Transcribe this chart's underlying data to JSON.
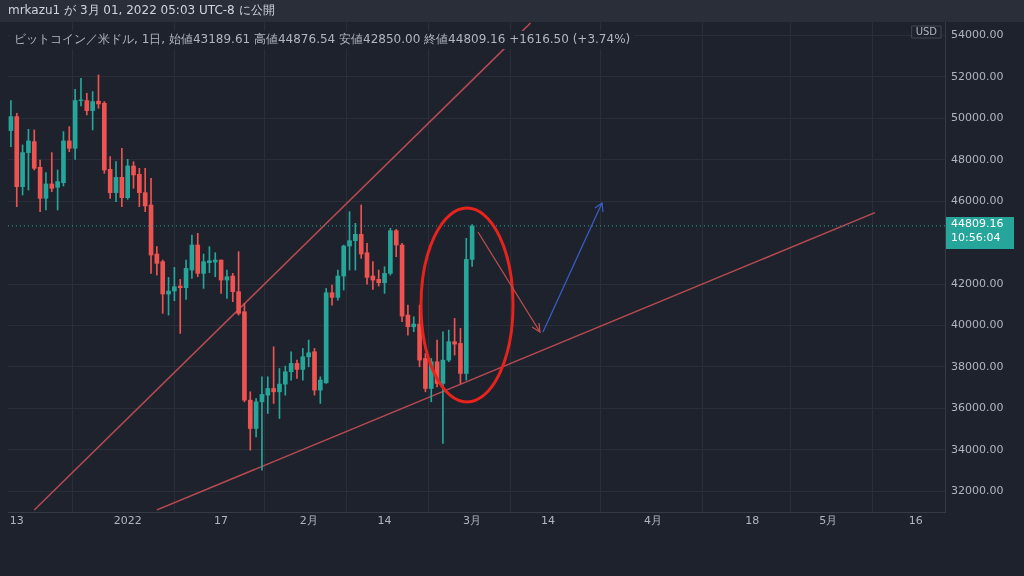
{
  "chart_data": {
    "type": "candlestick",
    "title": "mrkazu1 が 3月 01, 2022 05:03 UTC-8 に公開",
    "subtitle": "ビットコイン／米ドル, 1日, 始値43189.61 高値44876.54 安値42850.00 終値44809.16 +1616.50 (+3.74%)",
    "x": [
      "2021-12-12",
      "2021-12-13",
      "2021-12-14",
      "2021-12-15",
      "2021-12-16",
      "2021-12-17",
      "2021-12-18",
      "2021-12-19",
      "2021-12-20",
      "2021-12-21",
      "2021-12-22",
      "2021-12-23",
      "2021-12-24",
      "2021-12-25",
      "2021-12-26",
      "2021-12-27",
      "2021-12-28",
      "2021-12-29",
      "2021-12-30",
      "2021-12-31",
      "2022-01-01",
      "2022-01-02",
      "2022-01-03",
      "2022-01-04",
      "2022-01-05",
      "2022-01-06",
      "2022-01-07",
      "2022-01-08",
      "2022-01-09",
      "2022-01-10",
      "2022-01-11",
      "2022-01-12",
      "2022-01-13",
      "2022-01-14",
      "2022-01-15",
      "2022-01-16",
      "2022-01-17",
      "2022-01-18",
      "2022-01-19",
      "2022-01-20",
      "2022-01-21",
      "2022-01-22",
      "2022-01-23",
      "2022-01-24",
      "2022-01-25",
      "2022-01-26",
      "2022-01-27",
      "2022-01-28",
      "2022-01-29",
      "2022-01-30",
      "2022-01-31",
      "2022-02-01",
      "2022-02-02",
      "2022-02-03",
      "2022-02-04",
      "2022-02-05",
      "2022-02-06",
      "2022-02-07",
      "2022-02-08",
      "2022-02-09",
      "2022-02-10",
      "2022-02-11",
      "2022-02-12",
      "2022-02-13",
      "2022-02-14",
      "2022-02-15",
      "2022-02-16",
      "2022-02-17",
      "2022-02-18",
      "2022-02-19",
      "2022-02-20",
      "2022-02-21",
      "2022-02-22",
      "2022-02-23",
      "2022-02-24",
      "2022-02-25",
      "2022-02-26",
      "2022-02-27",
      "2022-02-28",
      "2022-03-01"
    ],
    "ohlc": [
      [
        49408,
        50857,
        48635,
        50084
      ],
      [
        50084,
        50245,
        45737,
        46703
      ],
      [
        46703,
        48716,
        46300,
        48345
      ],
      [
        48345,
        49472,
        46542,
        48909
      ],
      [
        48877,
        49440,
        47508,
        47589
      ],
      [
        47637,
        47991,
        45496,
        46140
      ],
      [
        46140,
        47379,
        45576,
        46832
      ],
      [
        46832,
        48345,
        46462,
        46622
      ],
      [
        46671,
        47508,
        45576,
        46945
      ],
      [
        46896,
        49360,
        46735,
        48909
      ],
      [
        48909,
        49601,
        48394,
        48555
      ],
      [
        48555,
        51404,
        48023,
        50857
      ],
      [
        50857,
        51936,
        50600,
        50889
      ],
      [
        50857,
        51211,
        50164,
        50374
      ],
      [
        50374,
        51291,
        49440,
        50809
      ],
      [
        50825,
        52096,
        50487,
        50696
      ],
      [
        50728,
        50809,
        47347,
        47508
      ],
      [
        47540,
        48152,
        46140,
        46414
      ],
      [
        46414,
        47910,
        45978,
        47154
      ],
      [
        47154,
        48555,
        45737,
        46172
      ],
      [
        46172,
        48023,
        46092,
        47701
      ],
      [
        47701,
        47910,
        46623,
        47267
      ],
      [
        47299,
        47589,
        45737,
        46414
      ],
      [
        46414,
        47589,
        45496,
        45769
      ],
      [
        45818,
        47106,
        42517,
        43403
      ],
      [
        43451,
        43805,
        42436,
        43000
      ],
      [
        43081,
        43161,
        40585,
        41519
      ],
      [
        41519,
        42324,
        40504,
        41664
      ],
      [
        41664,
        42807,
        41197,
        41873
      ],
      [
        41905,
        42227,
        39619,
        41825
      ],
      [
        41825,
        43161,
        41261,
        42758
      ],
      [
        42678,
        44369,
        42275,
        43886
      ],
      [
        43886,
        44449,
        42356,
        42517
      ],
      [
        42517,
        43451,
        41792,
        43081
      ],
      [
        43033,
        43805,
        42549,
        43129
      ],
      [
        43065,
        43515,
        42356,
        43161
      ],
      [
        43161,
        43161,
        41551,
        42195
      ],
      [
        42195,
        42678,
        41310,
        42356
      ],
      [
        42388,
        42517,
        41149,
        41632
      ],
      [
        41632,
        43564,
        40504,
        40585
      ],
      [
        40666,
        41068,
        36318,
        36399
      ],
      [
        36399,
        36801,
        33984,
        35031
      ],
      [
        35031,
        36479,
        34628,
        36318
      ],
      [
        36318,
        37526,
        33018,
        36673
      ],
      [
        36640,
        37526,
        35756,
        36962
      ],
      [
        36962,
        38975,
        36238,
        36801
      ],
      [
        36801,
        37928,
        35514,
        37172
      ],
      [
        37172,
        38041,
        36640,
        37768
      ],
      [
        37768,
        38734,
        37365,
        38170
      ],
      [
        38170,
        38331,
        37445,
        37880
      ],
      [
        37880,
        38895,
        37365,
        38492
      ],
      [
        38492,
        39297,
        38009,
        38685
      ],
      [
        38734,
        38895,
        36640,
        36882
      ],
      [
        36882,
        37526,
        36238,
        37365
      ],
      [
        37236,
        41793,
        37204,
        41583
      ],
      [
        41583,
        41954,
        40988,
        41358
      ],
      [
        41358,
        42678,
        41229,
        42388
      ],
      [
        42388,
        43886,
        41712,
        43837
      ],
      [
        43837,
        45496,
        42678,
        44095
      ],
      [
        44095,
        44932,
        42678,
        44401
      ],
      [
        44401,
        45818,
        43242,
        43451
      ],
      [
        43515,
        43966,
        42002,
        42324
      ],
      [
        42388,
        43081,
        41744,
        42195
      ],
      [
        42227,
        42678,
        41905,
        42066
      ],
      [
        42066,
        42839,
        41551,
        42517
      ],
      [
        42517,
        44691,
        42437,
        44578
      ],
      [
        44578,
        44643,
        43322,
        43886
      ],
      [
        43886,
        43966,
        40183,
        40456
      ],
      [
        40505,
        40988,
        39539,
        39941
      ],
      [
        39941,
        40424,
        39700,
        40070
      ],
      [
        40070,
        40988,
        38009,
        38331
      ],
      [
        38412,
        38653,
        36801,
        36962
      ],
      [
        36962,
        38412,
        36318,
        38251
      ],
      [
        38251,
        39297,
        37043,
        37204
      ],
      [
        37204,
        39700,
        34306,
        38331
      ],
      [
        38331,
        39780,
        38251,
        39217
      ],
      [
        39217,
        40344,
        38573,
        39104
      ],
      [
        39136,
        39861,
        37204,
        37687
      ],
      [
        37687,
        44208,
        37365,
        43193
      ],
      [
        43189.61,
        44876.54,
        42850.0,
        44809.16
      ]
    ],
    "colors": [
      "#26a69a",
      "#ef5350",
      "#26a69a",
      "#26a69a",
      "#ef5350",
      "#ef5350",
      "#26a69a",
      "#ef5350",
      "#26a69a",
      "#26a69a",
      "#ef5350",
      "#26a69a",
      "#26a69a",
      "#ef5350",
      "#26a69a",
      "#ef5350",
      "#ef5350",
      "#ef5350",
      "#26a69a",
      "#ef5350",
      "#26a69a",
      "#ef5350",
      "#ef5350",
      "#ef5350",
      "#ef5350",
      "#ef5350",
      "#ef5350",
      "#26a69a",
      "#26a69a",
      "#ef5350",
      "#26a69a",
      "#26a69a",
      "#ef5350",
      "#26a69a",
      "#26a69a",
      "#26a69a",
      "#ef5350",
      "#26a69a",
      "#ef5350",
      "#ef5350",
      "#ef5350",
      "#ef5350",
      "#26a69a",
      "#26a69a",
      "#26a69a",
      "#ef5350",
      "#26a69a",
      "#26a69a",
      "#26a69a",
      "#ef5350",
      "#26a69a",
      "#26a69a",
      "#ef5350",
      "#26a69a",
      "#26a69a",
      "#ef5350",
      "#26a69a",
      "#26a69a",
      "#26a69a",
      "#26a69a",
      "#ef5350",
      "#ef5350",
      "#ef5350",
      "#ef5350",
      "#26a69a",
      "#26a69a",
      "#ef5350",
      "#ef5350",
      "#ef5350",
      "#26a69a",
      "#ef5350",
      "#ef5350",
      "#26a69a",
      "#ef5350",
      "#26a69a",
      "#26a69a",
      "#ef5350",
      "#ef5350",
      "#26a69a",
      "#26a69a"
    ],
    "series": [
      {
        "type": "line",
        "color": "#b84a52",
        "x": [
          "2021-12-16",
          "2022-03-11"
        ],
        "values": [
          31100,
          54600
        ]
      },
      {
        "type": "line",
        "color": "#b84a52",
        "x": [
          "2022-01-06",
          "2022-05-09"
        ],
        "values": [
          31100,
          45450
        ]
      }
    ],
    "xlim": [
      "2021-12-11T12:00",
      "2022-05-21"
    ],
    "xticks": [
      {
        "value": "2021-12-13",
        "label": "13"
      },
      {
        "value": "2022-01-01",
        "label": "2022"
      },
      {
        "value": "2022-01-17",
        "label": "17"
      },
      {
        "value": "2022-02-01",
        "label": "2月"
      },
      {
        "value": "2022-02-14",
        "label": "14"
      },
      {
        "value": "2022-03-01",
        "label": "3月"
      },
      {
        "value": "2022-03-14",
        "label": "14"
      },
      {
        "value": "2022-04-01",
        "label": "4月"
      },
      {
        "value": "2022-04-18",
        "label": "18"
      },
      {
        "value": "2022-05-01",
        "label": "5月"
      },
      {
        "value": "2022-05-16",
        "label": "16"
      }
    ],
    "ylim": [
      31000,
      54650
    ],
    "yticks": [
      {
        "value": 32000,
        "label": "32000.00"
      },
      {
        "value": 34000,
        "label": "34000.00"
      },
      {
        "value": 36000,
        "label": "36000.00"
      },
      {
        "value": 38000,
        "label": "38000.00"
      },
      {
        "value": 40000,
        "label": "40000.00"
      },
      {
        "value": 42000,
        "label": "42000.00"
      },
      {
        "value": 46000,
        "label": "46000.00"
      },
      {
        "value": 48000,
        "label": "48000.00"
      },
      {
        "value": 50000,
        "label": "50000.00"
      },
      {
        "value": 52000,
        "label": "52000.00"
      },
      {
        "value": 54000,
        "label": "54000.00"
      }
    ],
    "ref_lines": [
      {
        "axis": "y",
        "value": 44809.16,
        "label": "44809.16\n10:56:04",
        "color": "#26a69a",
        "line_style": "dotted"
      }
    ],
    "annotations": [
      "USD"
    ],
    "grid": true,
    "legend": false,
    "marker": "none",
    "line_style": "solid"
  }
}
